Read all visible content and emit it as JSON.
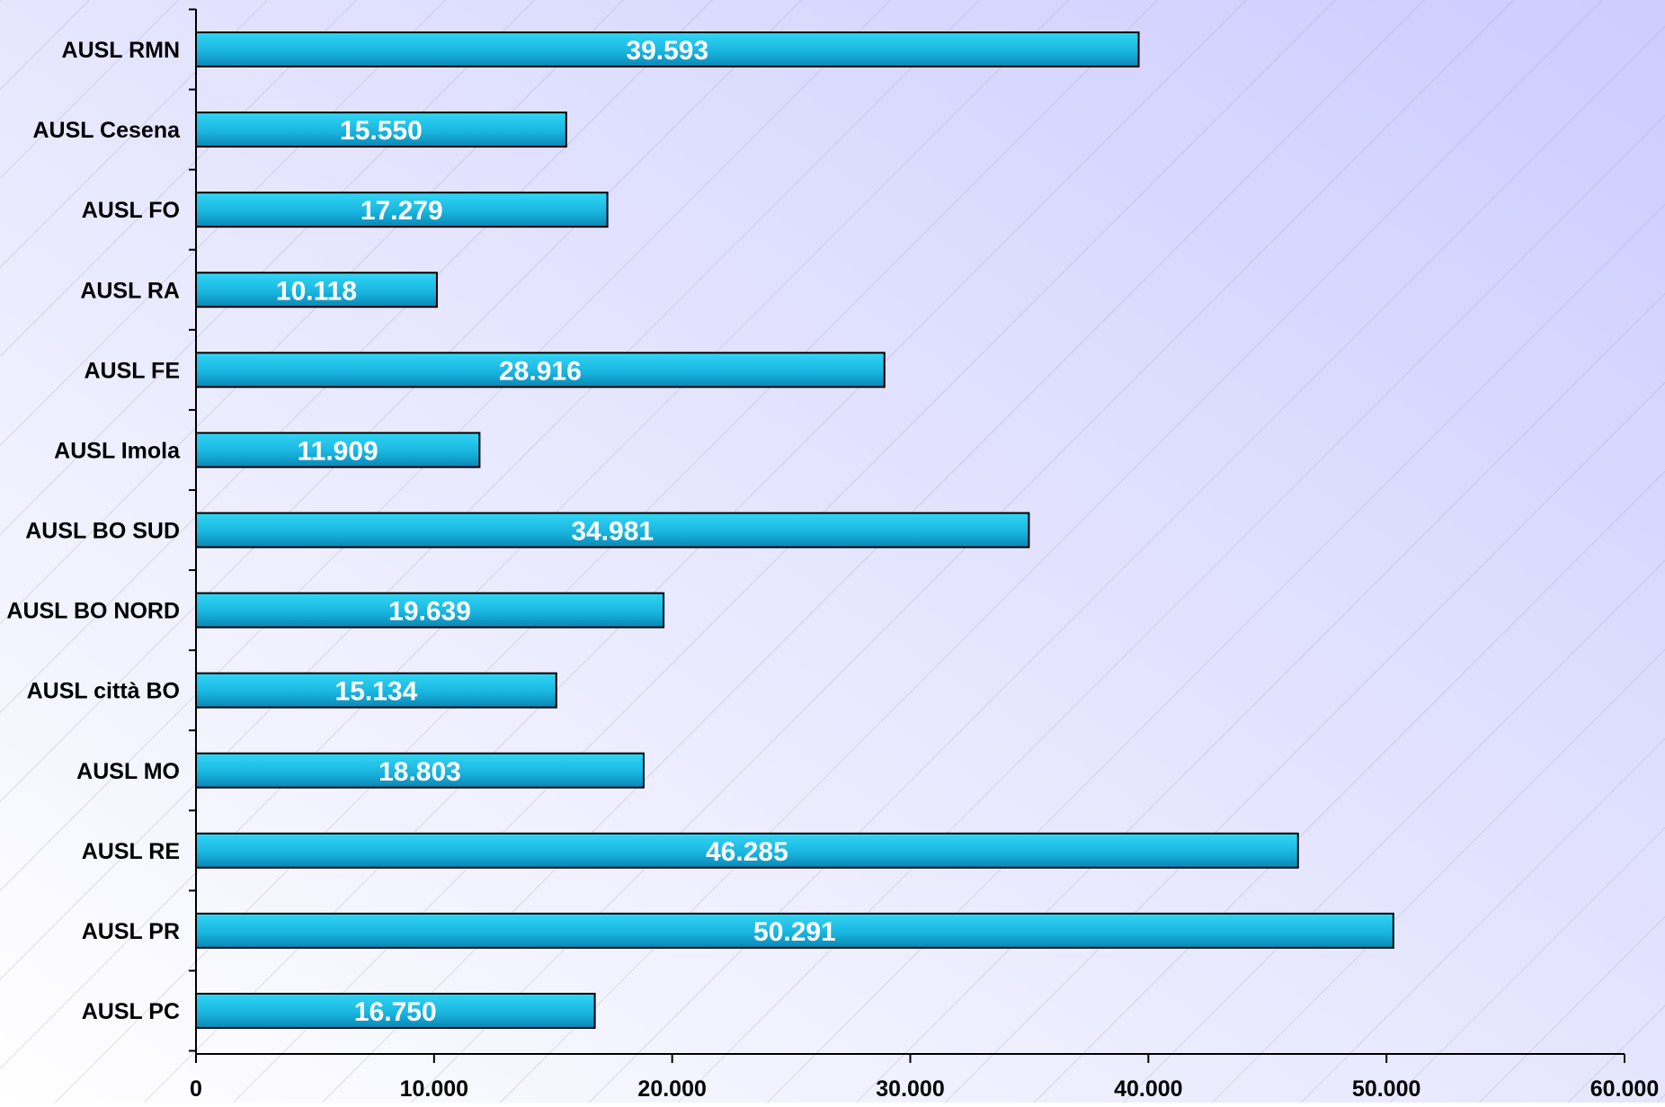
{
  "chart_data": {
    "type": "bar",
    "orientation": "horizontal",
    "title": "",
    "xlabel": "",
    "ylabel": "",
    "categories": [
      "AUSL RMN",
      "AUSL Cesena",
      "AUSL FO",
      "AUSL RA",
      "AUSL FE",
      "AUSL Imola",
      "AUSL BO SUD",
      "AUSL BO NORD",
      "AUSL città BO",
      "AUSL MO",
      "AUSL RE",
      "AUSL PR",
      "AUSL PC"
    ],
    "values": [
      39593,
      15550,
      17279,
      10118,
      28916,
      11909,
      34981,
      19639,
      15134,
      18803,
      46285,
      50291,
      16750
    ],
    "value_labels": [
      "39.593",
      "15.550",
      "17.279",
      "10.118",
      "28.916",
      "11.909",
      "34.981",
      "19.639",
      "15.134",
      "18.803",
      "46.285",
      "50.291",
      "16.750"
    ],
    "xlim": [
      0,
      60000
    ],
    "x_ticks": [
      0,
      10000,
      20000,
      30000,
      40000,
      50000,
      60000
    ],
    "x_tick_labels": [
      "0",
      "10.000",
      "20.000",
      "30.000",
      "40.000",
      "50.000",
      "60.000"
    ],
    "grid": false,
    "legend": "none",
    "colors": {
      "bar_fill_top": "#33d6f5",
      "bar_fill_mid": "#19b6e0",
      "bar_fill_bottom": "#0a86b4",
      "bar_stroke": "#000000",
      "bar_label": "#ffffff",
      "axis_text": "#000000",
      "background_left": "#ffffff",
      "background_right": "#ccccff"
    }
  }
}
